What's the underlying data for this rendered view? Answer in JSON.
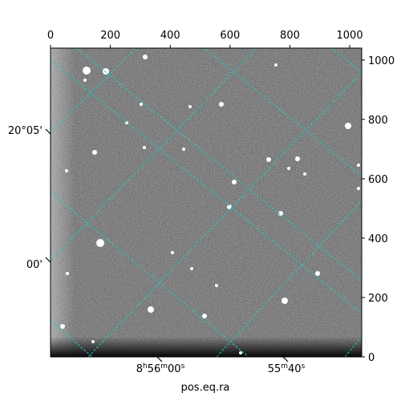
{
  "chart_data": {
    "type": "image",
    "colormap": "gray",
    "xlabel": "pos.eq.ra",
    "ylabel": "",
    "pixel_axes": {
      "xlim": [
        0,
        1040
      ],
      "ylim": [
        0,
        1040
      ],
      "x_ticks": [
        0,
        200,
        400,
        600,
        800,
        1000
      ],
      "y_ticks": [
        0,
        200,
        400,
        600,
        800,
        1000
      ]
    },
    "world_axes": {
      "ra_tick_labels": [
        {
          "base": "8",
          "h": "h",
          "mid": "56",
          "m": "m",
          "sec": "00",
          "s": "s"
        },
        {
          "base": "",
          "h": "",
          "mid": "55",
          "m": "m",
          "sec": "40",
          "s": "s"
        }
      ],
      "dec_tick_labels": [
        "20°05'",
        "00'"
      ]
    },
    "grid": true,
    "grid_color": "#21c7c7",
    "colors": {
      "frame": "#000000",
      "noise_bg": "#4a4a4a"
    }
  }
}
